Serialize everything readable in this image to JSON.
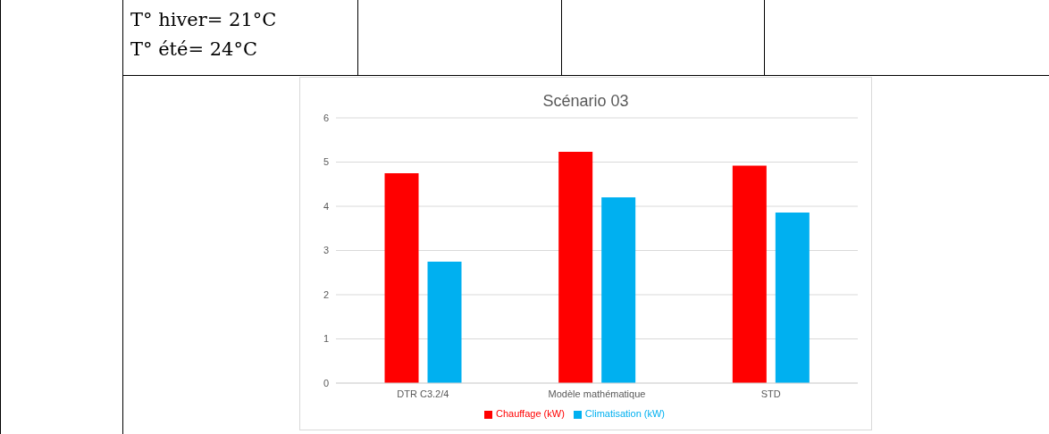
{
  "chart_data": {
    "type": "bar",
    "title": "Scénario 03",
    "categories": [
      "DTR C3.2/4",
      "Modèle mathématique",
      "STD"
    ],
    "series": [
      {
        "name": "Chauffage (kW)",
        "color": "#ff0000",
        "values": [
          4.75,
          5.23,
          4.92
        ]
      },
      {
        "name": "Climatisation (kW)",
        "color": "#00b0f0",
        "values": [
          2.75,
          4.2,
          3.86
        ]
      }
    ],
    "ylim": [
      0,
      6
    ],
    "yticks": [
      0,
      1,
      2,
      3,
      4,
      5,
      6
    ],
    "grid": "y",
    "legend": "bottom",
    "annotations": [
      "T° hiver= 21°C",
      "T° été= 24°C"
    ]
  }
}
